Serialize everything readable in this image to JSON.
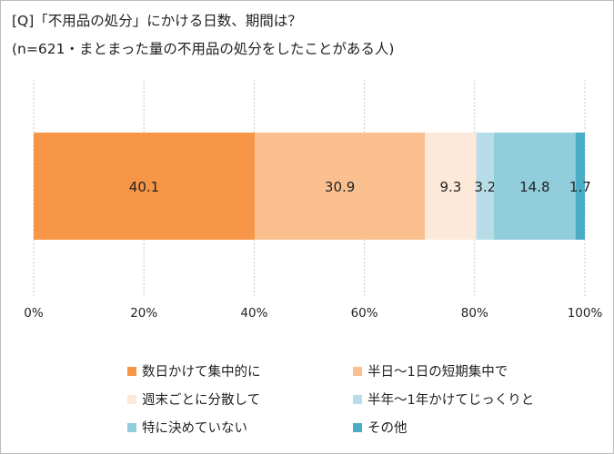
{
  "title": "[Q]「不用品の処分」にかける日数、期間は？",
  "subtitle": "(n=621・まとまった量の不用品の処分をしたことがある人)",
  "chart_data": {
    "type": "bar",
    "orientation": "horizontal",
    "stacked": "percent",
    "categories": [
      ""
    ],
    "series": [
      {
        "name": "数日かけて集中的に",
        "values": [
          40.1
        ],
        "color": "#F79646"
      },
      {
        "name": "半日～1日の短期集中で",
        "values": [
          30.9
        ],
        "color": "#FAC090"
      },
      {
        "name": "週末ごとに分散して",
        "values": [
          9.3
        ],
        "color": "#FDE9D9"
      },
      {
        "name": "半年～1年かけてじっくりと",
        "values": [
          3.2
        ],
        "color": "#B7DEE8"
      },
      {
        "name": "特に決めていない",
        "values": [
          14.8
        ],
        "color": "#92CDDC"
      },
      {
        "name": "その他",
        "values": [
          1.7
        ],
        "color": "#4BACC6"
      }
    ],
    "xlim": [
      0,
      100
    ],
    "xticks": [
      "0%",
      "20%",
      "40%",
      "60%",
      "80%",
      "100%"
    ],
    "grid": true,
    "legend": "bottom"
  }
}
